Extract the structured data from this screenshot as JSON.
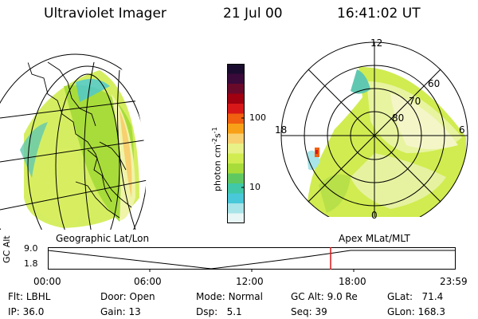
{
  "header": {
    "instrument": "Ultraviolet Imager",
    "date": "21 Jul 00",
    "time": "16:41:02 UT"
  },
  "colorbar": {
    "unit_label": "photon cm",
    "unit_exp1": "-2",
    "unit_s": "s",
    "unit_exp2": "-1",
    "tick_high": "100",
    "tick_low": "10",
    "colors": [
      "#1a0c2e",
      "#3a0a3a",
      "#6a0a2a",
      "#a00010",
      "#d81818",
      "#f06010",
      "#f8a018",
      "#f8d070",
      "#e8f088",
      "#d0ec50",
      "#a8dc3a",
      "#60c860",
      "#40c8a8",
      "#48c8d8",
      "#a8e4e8",
      "#e8f6f6"
    ]
  },
  "panels": {
    "left_label": "Geographic Lat/Lon",
    "right_label": "Apex MLat/MLT",
    "apex_labels": {
      "mlt_12": "12",
      "mlt_18": "18",
      "mlt_6": "6",
      "mlt_0": "0",
      "lat_60": "60",
      "lat_70": "70",
      "lat_80": "80"
    }
  },
  "timeline": {
    "axis_label": "GC Alt",
    "y_high": "9.0",
    "y_low": "1.8",
    "ticks": [
      "00:00",
      "06:00",
      "12:00",
      "18:00",
      "23:59"
    ],
    "marker_time": "16:41:02"
  },
  "info": {
    "flt_label": "Flt:",
    "flt_value": "LBHL",
    "ip_label": "IP:",
    "ip_value": "36.0",
    "door_label": "Door:",
    "door_value": "Open",
    "gain_label": "Gain:",
    "gain_value": "13",
    "mode_label": "Mode:",
    "mode_value": "Normal",
    "dsp_label": "Dsp:",
    "dsp_value": "5.1",
    "gcalt_label": "GC Alt:",
    "gcalt_value": "9.0 Re",
    "seq_label": "Seq:",
    "seq_value": "39",
    "glat_label": "GLat:",
    "glat_value": "71.4",
    "glon_label": "GLon:",
    "glon_value": "168.3"
  }
}
